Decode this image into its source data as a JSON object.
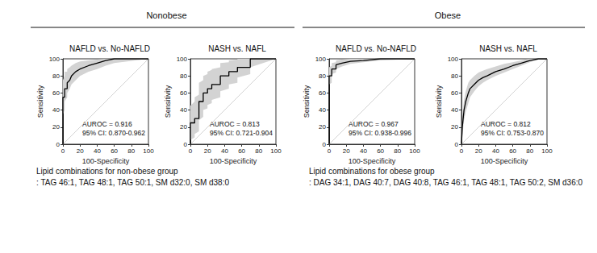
{
  "groups": [
    {
      "title": "Nonobese",
      "note_title": "Lipid combinations for non-obese group",
      "note": ": TAG 46:1, TAG 48:1, TAG 50:1, SM d32:0, SM d38:0"
    },
    {
      "title": "Obese",
      "note_title": "Lipid combinations for obese group",
      "note": ": DAG 34:1, DAG 40:7, DAG 40:8, TAG 46:1, TAG 48:1, TAG 50:2, SM d36:0"
    }
  ],
  "chart_data": [
    {
      "type": "line",
      "group": "Nonobese",
      "title": "NAFLD vs. No-NAFLD",
      "x_label": "100-Specificity",
      "y_label": "Sensitivity",
      "annotations": [
        "AUROC = 0.916",
        "95% CI: 0.870-0.962"
      ],
      "x": [
        0,
        0,
        2,
        2,
        5,
        5,
        8,
        10,
        15,
        20,
        30,
        40,
        50,
        60,
        100
      ],
      "values": [
        0,
        55,
        55,
        65,
        65,
        72,
        75,
        80,
        85,
        88,
        92,
        95,
        98,
        100,
        100
      ],
      "ci_lower": [
        0,
        35,
        40,
        50,
        55,
        60,
        65,
        70,
        75,
        80,
        85,
        88,
        92,
        95,
        100
      ],
      "ci_upper": [
        0,
        75,
        80,
        85,
        85,
        88,
        90,
        92,
        95,
        97,
        98,
        99,
        100,
        100,
        100
      ],
      "color": "#000000",
      "ci_color": "#d3d3d3",
      "xlim": [
        0,
        100
      ],
      "ylim": [
        0,
        100
      ],
      "xticks": [
        0,
        20,
        40,
        60,
        80,
        100
      ],
      "yticks": [
        0,
        20,
        40,
        60,
        80,
        100
      ],
      "grid": false
    },
    {
      "type": "line",
      "group": "Nonobese",
      "title": "NASH vs. NAFL",
      "x_label": "100-Specificity",
      "y_label": "Sensitivity",
      "annotations": [
        "AUROC = 0.813",
        "95% CI: 0.721-0.904"
      ],
      "x": [
        0,
        0,
        5,
        5,
        10,
        10,
        15,
        15,
        20,
        20,
        25,
        25,
        35,
        35,
        45,
        45,
        55,
        55,
        70,
        70,
        100
      ],
      "values": [
        0,
        25,
        25,
        30,
        30,
        50,
        50,
        60,
        60,
        65,
        65,
        70,
        70,
        80,
        80,
        85,
        85,
        90,
        90,
        100,
        100
      ],
      "ci_lower": [
        0,
        5,
        8,
        12,
        15,
        28,
        32,
        40,
        42,
        46,
        48,
        52,
        55,
        62,
        65,
        70,
        72,
        78,
        82,
        90,
        100
      ],
      "ci_upper": [
        0,
        45,
        50,
        55,
        58,
        72,
        75,
        80,
        82,
        85,
        87,
        88,
        90,
        95,
        96,
        98,
        99,
        100,
        100,
        100,
        100
      ],
      "color": "#000000",
      "ci_color": "#d3d3d3",
      "xlim": [
        0,
        100
      ],
      "ylim": [
        0,
        100
      ],
      "xticks": [
        0,
        20,
        40,
        60,
        80,
        100
      ],
      "yticks": [
        0,
        20,
        40,
        60,
        80,
        100
      ],
      "grid": false
    },
    {
      "type": "line",
      "group": "Obese",
      "title": "NAFLD vs. No-NAFLD",
      "x_label": "100-Specificity",
      "y_label": "Sensitivity",
      "annotations": [
        "AUROC = 0.967",
        "95% CI: 0.938-0.996"
      ],
      "x": [
        0,
        0,
        3,
        3,
        8,
        8,
        15,
        25,
        40,
        60,
        100
      ],
      "values": [
        0,
        80,
        80,
        88,
        88,
        93,
        95,
        97,
        98,
        100,
        100
      ],
      "ci_lower": [
        0,
        70,
        72,
        82,
        84,
        88,
        91,
        94,
        96,
        98,
        100
      ],
      "ci_upper": [
        0,
        90,
        92,
        95,
        96,
        98,
        99,
        100,
        100,
        100,
        100
      ],
      "color": "#000000",
      "ci_color": "#d3d3d3",
      "xlim": [
        0,
        100
      ],
      "ylim": [
        0,
        100
      ],
      "xticks": [
        0,
        20,
        40,
        60,
        80,
        100
      ],
      "yticks": [
        0,
        20,
        40,
        60,
        80,
        100
      ],
      "grid": false
    },
    {
      "type": "line",
      "group": "Obese",
      "title": "NASH vs. NAFL",
      "x_label": "100-Specificity",
      "y_label": "Sensitivity",
      "annotations": [
        "AUROC = 0.812",
        "95% CI: 0.753-0.870"
      ],
      "x": [
        0,
        1,
        2,
        3,
        5,
        8,
        10,
        15,
        20,
        25,
        30,
        40,
        50,
        60,
        70,
        80,
        90,
        100
      ],
      "values": [
        0,
        20,
        30,
        40,
        50,
        60,
        65,
        70,
        75,
        78,
        80,
        85,
        88,
        92,
        95,
        98,
        100,
        100
      ],
      "ci_lower": [
        0,
        10,
        18,
        28,
        38,
        48,
        55,
        62,
        68,
        72,
        75,
        80,
        84,
        88,
        92,
        96,
        99,
        100
      ],
      "ci_upper": [
        0,
        32,
        42,
        52,
        62,
        72,
        75,
        80,
        84,
        86,
        88,
        91,
        94,
        96,
        98,
        100,
        100,
        100
      ],
      "color": "#000000",
      "ci_color": "#d3d3d3",
      "xlim": [
        0,
        100
      ],
      "ylim": [
        0,
        100
      ],
      "xticks": [
        0,
        20,
        40,
        60,
        80,
        100
      ],
      "yticks": [
        0,
        20,
        40,
        60,
        80,
        100
      ],
      "grid": false
    }
  ]
}
